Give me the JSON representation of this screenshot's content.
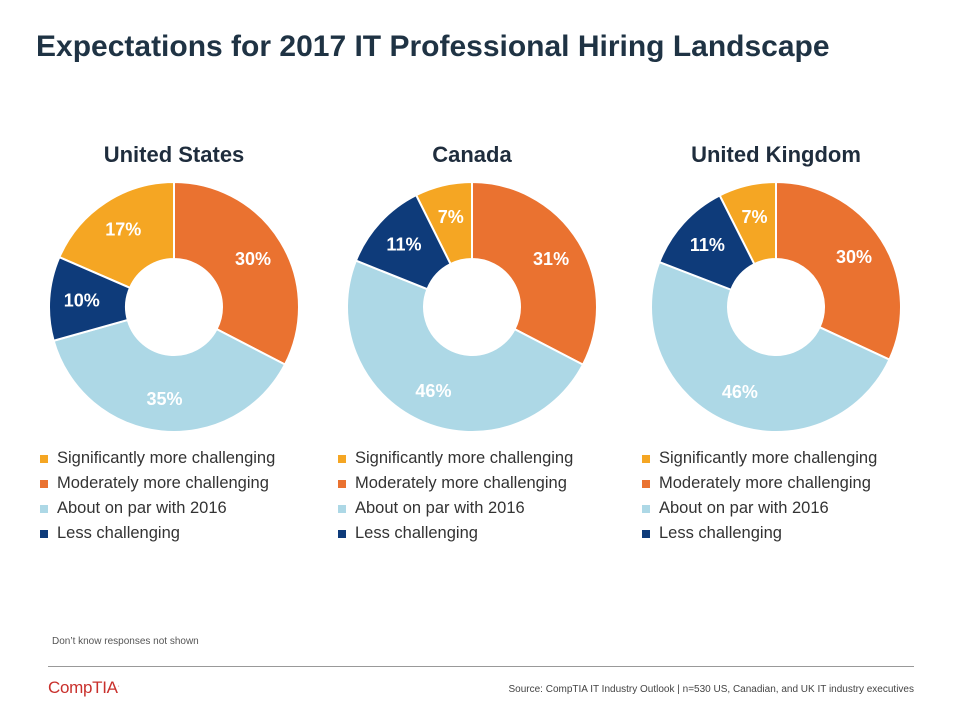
{
  "title": "Expectations for 2017 IT Professional Hiring Landscape",
  "colors": {
    "significantly": "#F5A623",
    "moderately": "#EA7230",
    "on_par": "#ADD8E6",
    "less": "#0E3B7A"
  },
  "legend_labels": [
    "Significantly more challenging",
    "Moderately more challenging",
    "About on par with 2016",
    "Less challenging"
  ],
  "chart_data": [
    {
      "type": "pie",
      "title": "United States",
      "categories": [
        "Significantly more challenging",
        "Moderately more challenging",
        "About on par with 2016",
        "Less challenging"
      ],
      "values": [
        17,
        30,
        35,
        10
      ],
      "labels": [
        "17%",
        "30%",
        "35%",
        "10%"
      ]
    },
    {
      "type": "pie",
      "title": "Canada",
      "categories": [
        "Significantly more challenging",
        "Moderately more challenging",
        "About on par with 2016",
        "Less challenging"
      ],
      "values": [
        7,
        31,
        46,
        11
      ],
      "labels": [
        "7%",
        "31%",
        "46%",
        "11%"
      ]
    },
    {
      "type": "pie",
      "title": "United Kingdom",
      "categories": [
        "Significantly more challenging",
        "Moderately more challenging",
        "About on par with 2016",
        "Less challenging"
      ],
      "values": [
        7,
        30,
        46,
        11
      ],
      "labels": [
        "7%",
        "30%",
        "46%",
        "11%"
      ]
    }
  ],
  "footnote": "Don’t know responses not shown",
  "logo": {
    "text": "CompTIA",
    "mark": "."
  },
  "source": "Source: CompTIA IT Industry Outlook | n=530 US, Canadian, and UK IT industry executives"
}
